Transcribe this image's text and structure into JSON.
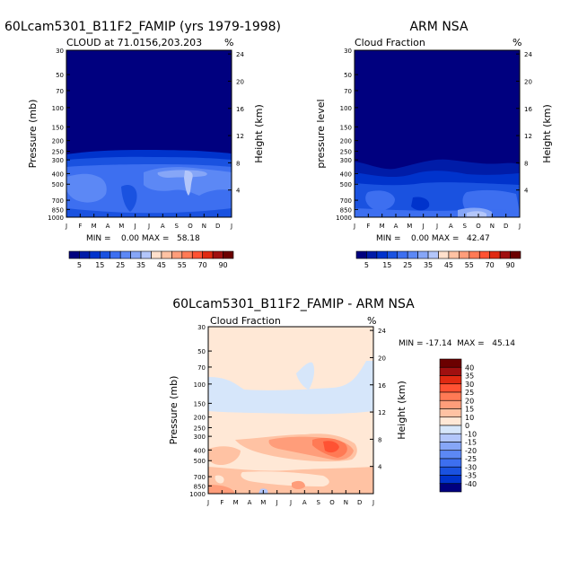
{
  "page": {
    "main_title": "60Lcam5301_B11F2_FAMIP (yrs 1979-1998)",
    "right_title": "ARM NSA",
    "diff_title": "60Lcam5301_B11F2_FAMIP - ARM NSA"
  },
  "chart_data": [
    {
      "type": "heatmap",
      "id": "model",
      "subtitle": "CLOUD at 71.0156,203.203",
      "unit": "%",
      "ylabel": "Pressure (mb)",
      "y2label": "Height (km)",
      "months": [
        "J",
        "F",
        "M",
        "A",
        "M",
        "J",
        "J",
        "A",
        "S",
        "O",
        "N",
        "D",
        "J"
      ],
      "pressure_ticks": [
        "30",
        "50",
        "70",
        "100",
        "150",
        "200",
        "250",
        "300",
        "400",
        "500",
        "700",
        "850",
        "1000"
      ],
      "height_ticks": [
        "4",
        "8",
        "12",
        "16",
        "20",
        "24"
      ],
      "stats": "MIN =    0.00 MAX =   58.18",
      "colorbar_ticks": [
        "5",
        "15",
        "25",
        "35",
        "45",
        "55",
        "70",
        "90"
      ],
      "levels": [
        5,
        10,
        15,
        20,
        25,
        30,
        35,
        40,
        45,
        50,
        55,
        60,
        70,
        80,
        90
      ]
    },
    {
      "type": "heatmap",
      "id": "obs",
      "subtitle": "Cloud Fraction",
      "unit": "%",
      "ylabel": "pressure level",
      "y2label": "Height (km)",
      "months": [
        "J",
        "F",
        "M",
        "A",
        "M",
        "J",
        "J",
        "A",
        "S",
        "O",
        "N",
        "D",
        "J"
      ],
      "pressure_ticks": [
        "30",
        "50",
        "70",
        "100",
        "150",
        "200",
        "250",
        "300",
        "400",
        "500",
        "700",
        "850",
        "1000"
      ],
      "height_ticks": [
        "4",
        "8",
        "12",
        "16",
        "20",
        "24"
      ],
      "stats": "MIN =    0.00 MAX =   42.47",
      "colorbar_ticks": [
        "5",
        "15",
        "25",
        "35",
        "45",
        "55",
        "70",
        "90"
      ],
      "levels": [
        5,
        10,
        15,
        20,
        25,
        30,
        35,
        40,
        45,
        50,
        55,
        60,
        70,
        80,
        90
      ]
    },
    {
      "type": "heatmap",
      "id": "diff",
      "subtitle": "Cloud Fraction",
      "unit": "%",
      "ylabel": "Pressure (mb)",
      "y2label": "Height (km)",
      "months": [
        "J",
        "F",
        "M",
        "A",
        "M",
        "J",
        "J",
        "A",
        "S",
        "O",
        "N",
        "D",
        "J"
      ],
      "pressure_ticks": [
        "30",
        "50",
        "70",
        "100",
        "150",
        "200",
        "250",
        "300",
        "400",
        "500",
        "700",
        "850",
        "1000"
      ],
      "height_ticks": [
        "4",
        "8",
        "12",
        "16",
        "20",
        "24"
      ],
      "stats": "MIN = -17.14  MAX =   45.14",
      "colorbar_ticks": [
        "40",
        "35",
        "30",
        "25",
        "20",
        "15",
        "10",
        "0",
        "-10",
        "-15",
        "-20",
        "-25",
        "-30",
        "-35",
        "-40"
      ],
      "levels": [
        -40,
        -35,
        -30,
        -25,
        -20,
        -15,
        -10,
        0,
        10,
        15,
        20,
        25,
        30,
        35,
        40
      ]
    }
  ],
  "colors": {
    "cbar_model": [
      "#00007f",
      "#001ca8",
      "#0033cc",
      "#1a52e0",
      "#3d6ff0",
      "#5c88f5",
      "#86a6f7",
      "#b3c6fa",
      "#ffe0cc",
      "#ffc2a3",
      "#ff9d7a",
      "#ff7a55",
      "#ff5233",
      "#e02a12",
      "#a01010",
      "#6b0000"
    ],
    "cbar_diff": [
      "#6b0000",
      "#a01010",
      "#e02a12",
      "#ff5233",
      "#ff7a55",
      "#ff9d7a",
      "#ffc2a3",
      "#ffe8d6",
      "#d6e6fa",
      "#b3c6fa",
      "#86a6f7",
      "#5c88f5",
      "#3d6ff0",
      "#1a52e0",
      "#0033cc",
      "#00007f"
    ]
  }
}
